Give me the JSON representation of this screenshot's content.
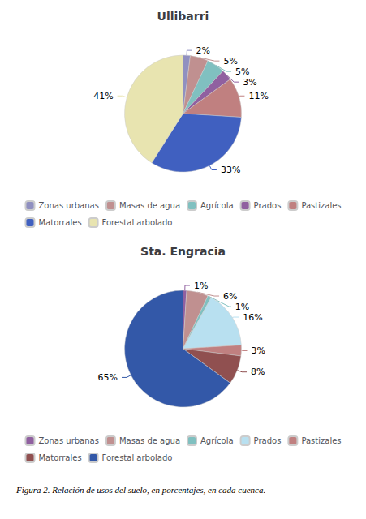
{
  "chart_data": [
    {
      "type": "pie",
      "title": "Ullibarri",
      "categories": [
        "Zonas urbanas",
        "Masas de agua",
        "Agrícola",
        "Prados",
        "Pastizales",
        "Matorrales",
        "Forestal arbolado"
      ],
      "values": [
        2,
        5,
        5,
        3,
        11,
        33,
        41
      ],
      "value_labels": [
        "2%",
        "5%",
        "5%",
        "3%",
        "11%",
        "33%",
        "41%"
      ],
      "colors": [
        "#9090c0",
        "#c09090",
        "#80c0c0",
        "#9060a0",
        "#c08080",
        "#4060c0",
        "#e8e4b0"
      ],
      "data_labels": true,
      "legend": "bottom"
    },
    {
      "type": "pie",
      "title": "Sta. Engracia",
      "categories": [
        "Zonas urbanas",
        "Masas de agua",
        "Agrícola",
        "Prados",
        "Pastizales",
        "Matorrales",
        "Forestal arbolado"
      ],
      "values": [
        1,
        6,
        1,
        16,
        3,
        8,
        65
      ],
      "value_labels": [
        "1%",
        "6%",
        "1%",
        "16%",
        "3%",
        "8%",
        "65%"
      ],
      "colors": [
        "#9060a0",
        "#c09090",
        "#80c0c0",
        "#b8e0f0",
        "#c08080",
        "#905050",
        "#3358a8"
      ],
      "data_labels": true,
      "legend": "bottom",
      "annotation": "Figura 2. Relación de usos del suelo, en porcentajes, en cada cuenca."
    }
  ]
}
